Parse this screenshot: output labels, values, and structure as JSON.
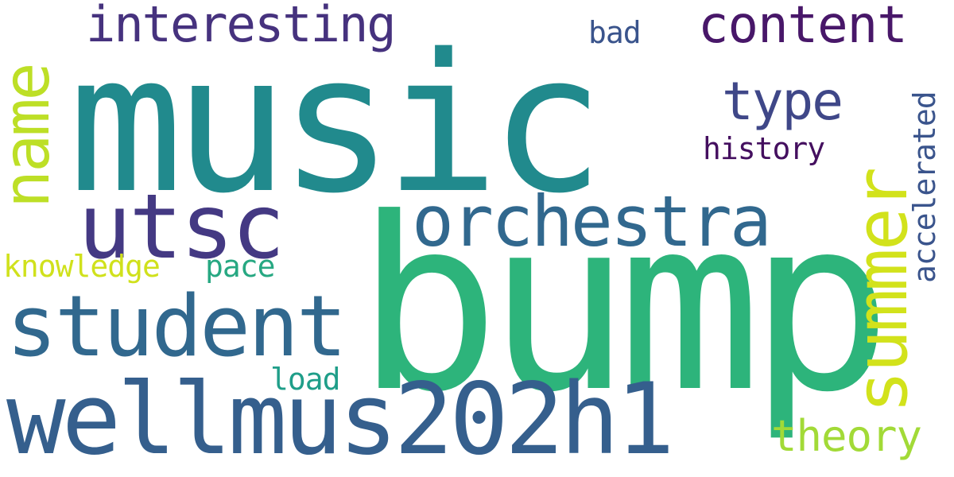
{
  "words": {
    "music": {
      "text": "music",
      "color": "#218a8d"
    },
    "bump": {
      "text": "bump",
      "color": "#2db47b"
    },
    "wellmus202h1": {
      "text": "wellmus202h1",
      "color": "#355f8d"
    },
    "student": {
      "text": "student",
      "color": "#31688e"
    },
    "orchestra": {
      "text": "orchestra",
      "color": "#31688e"
    },
    "utsc": {
      "text": "utsc",
      "color": "#443983"
    },
    "summer": {
      "text": "summer",
      "color": "#d2e21b"
    },
    "name": {
      "text": "name",
      "color": "#bddf26"
    },
    "interesting": {
      "text": "interesting",
      "color": "#46327e"
    },
    "content": {
      "text": "content",
      "color": "#481769"
    },
    "type": {
      "text": "type",
      "color": "#3f4788"
    },
    "theory": {
      "text": "theory",
      "color": "#a2da37"
    },
    "history": {
      "text": "history",
      "color": "#440f5f"
    },
    "accelerated": {
      "text": "accelerated",
      "color": "#3a548c"
    },
    "knowledge": {
      "text": "knowledge",
      "color": "#d0e11c"
    },
    "pace": {
      "text": "pace",
      "color": "#27a882"
    },
    "load": {
      "text": "load",
      "color": "#1f9e89"
    },
    "bad": {
      "text": "bad",
      "color": "#3a548c"
    }
  }
}
